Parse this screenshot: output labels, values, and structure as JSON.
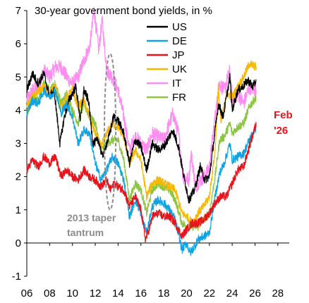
{
  "chart_data": {
    "type": "line",
    "title": "30-year government bond yields, in %",
    "xlabel": "",
    "ylabel": "",
    "xlim": [
      2006,
      2029
    ],
    "ylim": [
      -1,
      7
    ],
    "x_ticks": [
      "06",
      "08",
      "10",
      "12",
      "14",
      "16",
      "18",
      "20",
      "22",
      "24",
      "26",
      "28"
    ],
    "y_ticks": [
      "-1",
      "0",
      "1",
      "2",
      "3",
      "4",
      "5",
      "6",
      "7"
    ],
    "grid": false,
    "legend_position": "top-right",
    "series": [
      {
        "name": "US",
        "color": "#000000",
        "points": [
          [
            2006.0,
            4.6
          ],
          [
            2006.5,
            5.1
          ],
          [
            2007.0,
            4.8
          ],
          [
            2007.5,
            5.1
          ],
          [
            2008.0,
            4.4
          ],
          [
            2008.4,
            4.6
          ],
          [
            2008.9,
            3.0
          ],
          [
            2009.3,
            3.8
          ],
          [
            2009.7,
            4.3
          ],
          [
            2010.3,
            4.7
          ],
          [
            2010.7,
            3.7
          ],
          [
            2011.0,
            4.6
          ],
          [
            2011.4,
            4.3
          ],
          [
            2011.8,
            3.0
          ],
          [
            2012.3,
            3.1
          ],
          [
            2012.6,
            2.6
          ],
          [
            2013.2,
            3.2
          ],
          [
            2013.6,
            3.8
          ],
          [
            2014.0,
            3.7
          ],
          [
            2014.5,
            3.3
          ],
          [
            2015.0,
            2.4
          ],
          [
            2015.5,
            3.1
          ],
          [
            2016.0,
            2.9
          ],
          [
            2016.5,
            2.2
          ],
          [
            2017.0,
            3.0
          ],
          [
            2017.5,
            2.8
          ],
          [
            2018.0,
            2.9
          ],
          [
            2018.8,
            3.4
          ],
          [
            2019.3,
            2.9
          ],
          [
            2019.7,
            2.1
          ],
          [
            2020.2,
            1.3
          ],
          [
            2020.7,
            1.6
          ],
          [
            2021.2,
            2.3
          ],
          [
            2021.6,
            1.9
          ],
          [
            2022.0,
            2.0
          ],
          [
            2022.4,
            3.1
          ],
          [
            2022.8,
            4.2
          ],
          [
            2023.2,
            3.8
          ],
          [
            2023.8,
            5.0
          ],
          [
            2024.0,
            4.0
          ],
          [
            2024.5,
            4.6
          ],
          [
            2024.9,
            4.7
          ],
          [
            2025.4,
            4.9
          ],
          [
            2025.8,
            4.7
          ],
          [
            2026.1,
            4.9
          ]
        ]
      },
      {
        "name": "DE",
        "color": "#10a3e3",
        "points": [
          [
            2006.0,
            3.9
          ],
          [
            2006.5,
            4.3
          ],
          [
            2007.0,
            4.2
          ],
          [
            2007.5,
            4.6
          ],
          [
            2008.0,
            4.4
          ],
          [
            2008.5,
            4.6
          ],
          [
            2009.0,
            3.9
          ],
          [
            2009.5,
            4.2
          ],
          [
            2010.0,
            3.8
          ],
          [
            2010.5,
            3.0
          ],
          [
            2011.0,
            3.4
          ],
          [
            2011.5,
            3.3
          ],
          [
            2012.0,
            2.4
          ],
          [
            2012.5,
            1.9
          ],
          [
            2013.0,
            2.2
          ],
          [
            2013.5,
            2.6
          ],
          [
            2014.0,
            2.4
          ],
          [
            2014.5,
            1.9
          ],
          [
            2015.0,
            0.8
          ],
          [
            2015.5,
            1.3
          ],
          [
            2016.0,
            0.9
          ],
          [
            2016.5,
            0.3
          ],
          [
            2017.0,
            1.1
          ],
          [
            2017.5,
            1.3
          ],
          [
            2018.0,
            1.2
          ],
          [
            2018.5,
            1.0
          ],
          [
            2019.0,
            0.7
          ],
          [
            2019.6,
            -0.2
          ],
          [
            2020.0,
            0.0
          ],
          [
            2020.3,
            -0.3
          ],
          [
            2020.7,
            -0.1
          ],
          [
            2021.0,
            0.1
          ],
          [
            2021.5,
            0.2
          ],
          [
            2022.0,
            0.3
          ],
          [
            2022.5,
            1.4
          ],
          [
            2022.9,
            2.1
          ],
          [
            2023.3,
            2.4
          ],
          [
            2023.8,
            3.0
          ],
          [
            2024.0,
            2.5
          ],
          [
            2024.5,
            2.6
          ],
          [
            2025.0,
            2.7
          ],
          [
            2025.5,
            3.1
          ],
          [
            2026.1,
            3.5
          ]
        ]
      },
      {
        "name": "JP",
        "color": "#e8141b",
        "points": [
          [
            2006.0,
            2.2
          ],
          [
            2006.5,
            2.5
          ],
          [
            2007.0,
            2.3
          ],
          [
            2007.5,
            2.6
          ],
          [
            2008.0,
            2.4
          ],
          [
            2008.5,
            2.6
          ],
          [
            2009.0,
            2.0
          ],
          [
            2009.5,
            2.2
          ],
          [
            2010.0,
            2.0
          ],
          [
            2010.5,
            1.9
          ],
          [
            2011.0,
            2.2
          ],
          [
            2011.5,
            2.0
          ],
          [
            2012.0,
            1.9
          ],
          [
            2012.5,
            1.7
          ],
          [
            2013.0,
            1.9
          ],
          [
            2013.3,
            1.6
          ],
          [
            2013.7,
            1.8
          ],
          [
            2014.0,
            1.7
          ],
          [
            2014.5,
            1.6
          ],
          [
            2015.0,
            1.1
          ],
          [
            2015.5,
            1.4
          ],
          [
            2016.0,
            1.0
          ],
          [
            2016.4,
            0.1
          ],
          [
            2016.8,
            0.5
          ],
          [
            2017.0,
            0.8
          ],
          [
            2017.5,
            0.9
          ],
          [
            2018.0,
            0.8
          ],
          [
            2018.5,
            0.8
          ],
          [
            2019.0,
            0.6
          ],
          [
            2019.6,
            0.2
          ],
          [
            2020.0,
            0.4
          ],
          [
            2020.5,
            0.6
          ],
          [
            2021.0,
            0.6
          ],
          [
            2021.5,
            0.7
          ],
          [
            2022.0,
            0.9
          ],
          [
            2022.5,
            1.2
          ],
          [
            2023.0,
            1.4
          ],
          [
            2023.5,
            1.4
          ],
          [
            2024.0,
            1.8
          ],
          [
            2024.5,
            2.2
          ],
          [
            2025.0,
            2.3
          ],
          [
            2025.5,
            2.9
          ],
          [
            2026.1,
            3.6
          ]
        ]
      },
      {
        "name": "UK",
        "color": "#f6b800",
        "points": [
          [
            2006.0,
            4.1
          ],
          [
            2006.5,
            4.4
          ],
          [
            2007.0,
            4.6
          ],
          [
            2007.5,
            4.7
          ],
          [
            2008.0,
            4.5
          ],
          [
            2008.5,
            4.7
          ],
          [
            2009.0,
            4.0
          ],
          [
            2009.5,
            4.4
          ],
          [
            2010.0,
            4.6
          ],
          [
            2010.5,
            4.1
          ],
          [
            2011.0,
            4.3
          ],
          [
            2011.5,
            3.8
          ],
          [
            2012.0,
            3.3
          ],
          [
            2012.5,
            2.9
          ],
          [
            2013.0,
            3.3
          ],
          [
            2013.5,
            3.6
          ],
          [
            2014.0,
            3.5
          ],
          [
            2014.5,
            3.2
          ],
          [
            2015.0,
            2.4
          ],
          [
            2015.5,
            2.8
          ],
          [
            2016.0,
            2.5
          ],
          [
            2016.5,
            1.4
          ],
          [
            2017.0,
            1.8
          ],
          [
            2017.5,
            1.9
          ],
          [
            2018.0,
            1.8
          ],
          [
            2018.5,
            1.7
          ],
          [
            2019.0,
            1.6
          ],
          [
            2019.6,
            0.9
          ],
          [
            2020.0,
            0.8
          ],
          [
            2020.5,
            0.6
          ],
          [
            2021.0,
            0.9
          ],
          [
            2021.5,
            1.1
          ],
          [
            2022.0,
            1.4
          ],
          [
            2022.5,
            2.8
          ],
          [
            2022.8,
            4.8
          ],
          [
            2023.0,
            3.6
          ],
          [
            2023.5,
            4.5
          ],
          [
            2024.0,
            4.4
          ],
          [
            2024.5,
            4.7
          ],
          [
            2025.0,
            5.0
          ],
          [
            2025.5,
            5.4
          ],
          [
            2026.1,
            5.3
          ]
        ]
      },
      {
        "name": "IT",
        "color": "#ff8cf1",
        "points": [
          [
            2006.0,
            4.3
          ],
          [
            2006.5,
            4.6
          ],
          [
            2007.0,
            4.7
          ],
          [
            2007.5,
            5.2
          ],
          [
            2008.0,
            5.0
          ],
          [
            2008.5,
            5.3
          ],
          [
            2009.0,
            5.3
          ],
          [
            2009.5,
            5.0
          ],
          [
            2010.0,
            4.8
          ],
          [
            2010.5,
            5.0
          ],
          [
            2011.0,
            5.5
          ],
          [
            2011.5,
            5.9
          ],
          [
            2011.9,
            7.0
          ],
          [
            2012.3,
            5.8
          ],
          [
            2012.6,
            6.7
          ],
          [
            2013.0,
            5.2
          ],
          [
            2013.5,
            5.0
          ],
          [
            2014.0,
            4.6
          ],
          [
            2014.5,
            3.8
          ],
          [
            2015.0,
            2.8
          ],
          [
            2015.5,
            3.2
          ],
          [
            2016.0,
            3.0
          ],
          [
            2016.5,
            2.8
          ],
          [
            2017.0,
            3.3
          ],
          [
            2017.5,
            3.2
          ],
          [
            2018.0,
            3.1
          ],
          [
            2018.5,
            3.6
          ],
          [
            2018.8,
            3.9
          ],
          [
            2019.3,
            3.3
          ],
          [
            2019.7,
            2.0
          ],
          [
            2020.2,
            1.9
          ],
          [
            2020.4,
            2.7
          ],
          [
            2020.8,
            1.7
          ],
          [
            2021.2,
            1.9
          ],
          [
            2021.6,
            2.0
          ],
          [
            2022.0,
            2.3
          ],
          [
            2022.5,
            3.8
          ],
          [
            2022.9,
            4.8
          ],
          [
            2023.3,
            4.6
          ],
          [
            2023.8,
            5.2
          ],
          [
            2024.0,
            4.3
          ],
          [
            2024.5,
            4.5
          ],
          [
            2025.0,
            4.2
          ],
          [
            2025.5,
            4.7
          ],
          [
            2026.1,
            4.6
          ]
        ]
      },
      {
        "name": "FR",
        "color": "#8cc63f",
        "points": [
          [
            2006.0,
            3.9
          ],
          [
            2006.5,
            4.4
          ],
          [
            2007.0,
            4.3
          ],
          [
            2007.5,
            4.8
          ],
          [
            2008.0,
            4.6
          ],
          [
            2008.5,
            4.8
          ],
          [
            2009.0,
            4.2
          ],
          [
            2009.5,
            4.5
          ],
          [
            2010.0,
            4.0
          ],
          [
            2010.5,
            3.6
          ],
          [
            2011.0,
            4.2
          ],
          [
            2011.5,
            3.8
          ],
          [
            2012.0,
            3.6
          ],
          [
            2012.5,
            2.8
          ],
          [
            2013.0,
            3.0
          ],
          [
            2013.5,
            3.1
          ],
          [
            2014.0,
            3.1
          ],
          [
            2014.5,
            2.5
          ],
          [
            2015.0,
            1.3
          ],
          [
            2015.5,
            1.8
          ],
          [
            2016.0,
            1.6
          ],
          [
            2016.5,
            0.9
          ],
          [
            2017.0,
            1.6
          ],
          [
            2017.5,
            1.8
          ],
          [
            2018.0,
            1.7
          ],
          [
            2018.5,
            1.6
          ],
          [
            2019.0,
            1.3
          ],
          [
            2019.6,
            0.6
          ],
          [
            2020.0,
            0.5
          ],
          [
            2020.5,
            0.5
          ],
          [
            2021.0,
            0.5
          ],
          [
            2021.5,
            0.7
          ],
          [
            2022.0,
            0.9
          ],
          [
            2022.5,
            2.0
          ],
          [
            2022.9,
            3.1
          ],
          [
            2023.3,
            3.2
          ],
          [
            2023.8,
            3.6
          ],
          [
            2024.0,
            3.3
          ],
          [
            2024.5,
            3.5
          ],
          [
            2025.0,
            3.6
          ],
          [
            2025.5,
            4.1
          ],
          [
            2026.1,
            4.4
          ]
        ]
      }
    ],
    "annotations": [
      {
        "text": "2013 taper",
        "color": "#8c8c8c"
      },
      {
        "text": "tantrum",
        "color": "#8c8c8c"
      },
      {
        "text": "Feb",
        "color": "#e8141b"
      },
      {
        "text": "'26",
        "color": "#e8141b"
      }
    ],
    "highlight": {
      "shape": "dashed-ellipse",
      "x_range": [
        2012.8,
        2013.8
      ],
      "y_range": [
        1.0,
        5.7
      ],
      "color": "#8c8c8c"
    }
  }
}
